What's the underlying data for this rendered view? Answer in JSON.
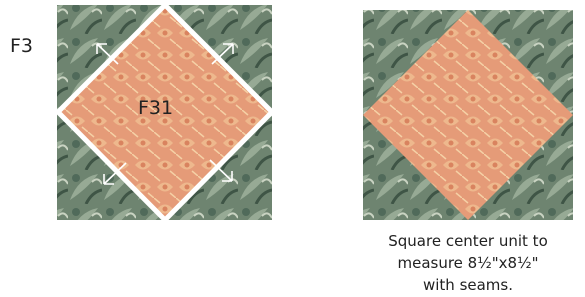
{
  "labels": {
    "outer": "F3",
    "inner": "F31"
  },
  "caption": {
    "lines": [
      "Square center unit to",
      "measure 8½\"x8½\"",
      "with seams."
    ]
  }
}
